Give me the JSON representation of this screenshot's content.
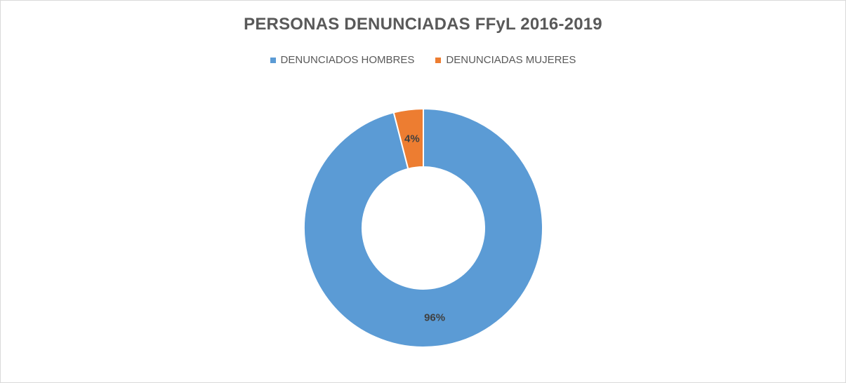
{
  "chart_data": {
    "type": "pie",
    "variant": "donut",
    "title": "PERSONAS DENUNCIADAS FFyL 2016-2019",
    "legend_position": "top",
    "categories": [
      "DENUNCIADOS HOMBRES",
      "DENUNCIADAS MUJERES"
    ],
    "values": [
      96,
      4
    ],
    "data_labels": [
      "96%",
      "4%"
    ],
    "colors": [
      "#5b9bd5",
      "#ed7d31"
    ],
    "label_color": "#404040"
  }
}
